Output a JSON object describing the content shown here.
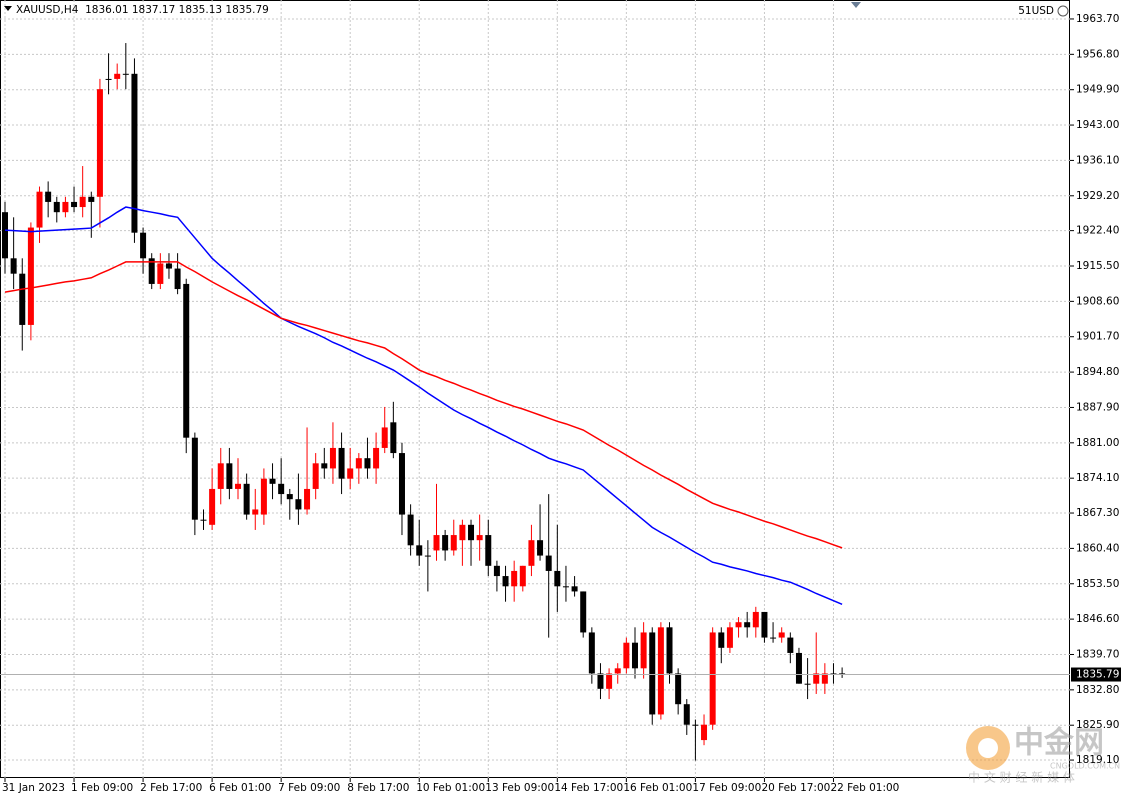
{
  "chart_data": {
    "type": "candlestick",
    "title": "XAUUSD,H4",
    "account_label": "51USD",
    "categories": [
      "31 Jan 2023",
      null,
      null,
      null,
      null,
      null,
      null,
      null,
      "1 Feb 09:00",
      null,
      null,
      null,
      null,
      null,
      null,
      null,
      "2 Feb 17:00",
      null,
      null,
      null,
      null,
      null,
      null,
      null,
      "6 Feb 01:00",
      null,
      null,
      null,
      null,
      null,
      null,
      null,
      "7 Feb 09:00",
      null,
      null,
      null,
      null,
      null,
      null,
      null,
      "8 Feb 17:00",
      null,
      null,
      null,
      null,
      null,
      null,
      null,
      "10 Feb 01:00",
      null,
      null,
      null,
      null,
      null,
      null,
      null,
      "13 Feb 09:00",
      null,
      null,
      null,
      null,
      null,
      null,
      null,
      "14 Feb 17:00",
      null,
      null,
      null,
      null,
      null,
      null,
      null,
      "16 Feb 01:00",
      null,
      null,
      null,
      null,
      null,
      null,
      null,
      "17 Feb 09:00",
      null,
      null,
      null,
      null,
      null,
      null,
      null,
      "20 Feb 17:00",
      null,
      null,
      null,
      null,
      null,
      null,
      null,
      "22 Feb 01:00",
      null
    ],
    "open": [
      1926,
      1917,
      1914,
      1904,
      1923,
      1930,
      1928,
      1926,
      1928,
      1927,
      1929,
      1929,
      1952,
      1952,
      1953,
      1953,
      1922,
      1917,
      1912,
      1916,
      1915,
      1912,
      1882,
      1866,
      1865,
      1872,
      1877,
      1872,
      1873,
      1867,
      1867,
      1874,
      1873,
      1871,
      1870,
      1868,
      1872,
      1877,
      1876,
      1880,
      1874,
      1876,
      1878,
      1876,
      1880,
      1885,
      1879,
      1867,
      1861,
      1859,
      1860,
      1863,
      1860,
      1862,
      1865,
      1862,
      1863,
      1857,
      1855,
      1853,
      1853,
      1857,
      1862,
      1859,
      1856,
      1853,
      1853,
      1852,
      1844,
      1836,
      1833,
      1836,
      1837,
      1842,
      1837,
      1844,
      1828,
      1845,
      1836,
      1830,
      1826,
      1823,
      1826,
      1844,
      1841,
      1845,
      1846,
      1845,
      1848,
      1843,
      1843,
      1843,
      1840,
      1834,
      1834,
      1834,
      1836,
      1836.01
    ],
    "high": [
      1928,
      1925,
      1917,
      1924,
      1931,
      1932,
      1929,
      1929,
      1931,
      1935,
      1930,
      1952,
      1957,
      1955,
      1959,
      1956,
      1923,
      1918,
      1918,
      1918,
      1918,
      1913,
      1883,
      1868,
      1876,
      1880,
      1880,
      1878,
      1875,
      1872,
      1876,
      1877,
      1878,
      1872,
      1875,
      1884,
      1879,
      1880,
      1885,
      1883,
      1880,
      1879,
      1882,
      1883,
      1888,
      1889,
      1881,
      1869,
      1866,
      1862,
      1873,
      1864,
      1866,
      1866,
      1866,
      1867,
      1866,
      1858,
      1857,
      1858,
      1857,
      1865,
      1869,
      1871,
      1865,
      1857,
      1855,
      1852,
      1845,
      1838,
      1837,
      1838,
      1843,
      1845,
      1846,
      1845,
      1846,
      1846,
      1837,
      1831,
      1827,
      1828,
      1845,
      1845,
      1846,
      1847,
      1848,
      1849,
      1848,
      1846,
      1845,
      1844,
      1841,
      1839,
      1844,
      1838,
      1838,
      1837.17
    ],
    "low": [
      1914,
      1911,
      1899,
      1901,
      1920,
      1925,
      1924,
      1925,
      1926,
      1925,
      1921,
      1923,
      1949,
      1950,
      1950,
      1920,
      1914,
      1911,
      1911,
      1913,
      1910,
      1879,
      1863,
      1864,
      1864,
      1869,
      1870,
      1870,
      1866,
      1864,
      1865,
      1870,
      1869,
      1866,
      1865,
      1867,
      1870,
      1874,
      1873,
      1871,
      1872,
      1873,
      1874,
      1873,
      1879,
      1878,
      1863,
      1859,
      1857,
      1852,
      1858,
      1858,
      1859,
      1857,
      1857,
      1858,
      1855,
      1852,
      1850,
      1850,
      1852,
      1855,
      1858,
      1843,
      1848,
      1850,
      1851,
      1843,
      1834,
      1831,
      1831,
      1834,
      1836,
      1835,
      1835,
      1826,
      1827,
      1834,
      1828,
      1824,
      1819,
      1822,
      1825,
      1838,
      1840,
      1843,
      1843,
      1843,
      1842,
      1842,
      1842,
      1838,
      1834,
      1831,
      1832,
      1832,
      1834,
      1835.13
    ],
    "close": [
      1917,
      1914,
      1904,
      1923,
      1930,
      1928,
      1926,
      1928,
      1927,
      1929,
      1928,
      1950,
      1952,
      1953,
      1953,
      1922,
      1917,
      1912,
      1916,
      1915,
      1911,
      1882,
      1866,
      1866,
      1872,
      1877,
      1872,
      1873,
      1867,
      1868,
      1874,
      1873,
      1871,
      1870,
      1868,
      1872,
      1877,
      1876,
      1880,
      1874,
      1876,
      1878,
      1876,
      1880,
      1884,
      1879,
      1867,
      1861,
      1859,
      1859,
      1863,
      1860,
      1863,
      1865,
      1862,
      1863,
      1857,
      1855,
      1853,
      1856,
      1857,
      1862,
      1859,
      1856,
      1853,
      1853,
      1852,
      1844,
      1836,
      1833,
      1836,
      1837,
      1842,
      1837,
      1844,
      1828,
      1845,
      1836,
      1830,
      1826,
      1826,
      1826,
      1844,
      1841,
      1845,
      1846,
      1845,
      1848,
      1843,
      1843,
      1844,
      1840,
      1834,
      1834,
      1836,
      1836,
      1836,
      1835.79
    ],
    "up_color": "#ff0000",
    "down_color": "#000000",
    "moving_averages": [
      {
        "color": "#0000ff",
        "values": [
          1922.5,
          1922.4,
          1922.3,
          1922.2,
          1922.3,
          1922.4,
          1922.5,
          1922.6,
          1922.7,
          1922.8,
          1922.9,
          1923.9,
          1924.9,
          1926.0,
          1927.0,
          1926.7,
          1926.3,
          1926.0,
          1925.7,
          1925.3,
          1925.0,
          1923.0,
          1921.0,
          1919.0,
          1917.0,
          1915.5,
          1914.1,
          1912.6,
          1911.2,
          1909.7,
          1908.2,
          1906.8,
          1905.3,
          1904.5,
          1903.7,
          1903.0,
          1902.3,
          1901.5,
          1900.6,
          1899.9,
          1899.1,
          1898.3,
          1897.5,
          1896.8,
          1896.0,
          1895.2,
          1894.1,
          1893.0,
          1891.9,
          1890.7,
          1889.6,
          1888.5,
          1887.4,
          1886.5,
          1885.7,
          1884.8,
          1884.0,
          1883.1,
          1882.3,
          1881.4,
          1880.6,
          1879.7,
          1878.9,
          1878.0,
          1877.4,
          1876.9,
          1876.3,
          1875.7,
          1874.3,
          1872.9,
          1871.5,
          1870.1,
          1868.7,
          1867.3,
          1865.9,
          1864.5,
          1863.5,
          1862.6,
          1861.6,
          1860.6,
          1859.6,
          1858.7,
          1857.7,
          1857.3,
          1856.8,
          1856.4,
          1856.0,
          1855.5,
          1855.1,
          1854.7,
          1854.2,
          1853.8,
          1853.1,
          1852.4,
          1851.6,
          1850.9,
          1850.2,
          1849.5
        ]
      },
      {
        "color": "#ff0000",
        "values": [
          1910.4,
          1910.7,
          1911.0,
          1911.2,
          1911.5,
          1911.8,
          1912.1,
          1912.4,
          1912.6,
          1912.9,
          1913.2,
          1914.0,
          1914.7,
          1915.5,
          1916.3,
          1916.3,
          1916.3,
          1916.3,
          1916.3,
          1916.3,
          1916.3,
          1915.3,
          1914.4,
          1913.4,
          1912.4,
          1911.5,
          1910.6,
          1909.7,
          1908.9,
          1908.0,
          1907.1,
          1906.2,
          1905.3,
          1904.8,
          1904.3,
          1903.9,
          1903.4,
          1902.9,
          1902.4,
          1901.9,
          1901.4,
          1900.9,
          1900.5,
          1900.0,
          1899.5,
          1898.4,
          1897.4,
          1896.3,
          1895.2,
          1894.5,
          1893.9,
          1893.2,
          1892.6,
          1891.9,
          1891.3,
          1890.6,
          1890.0,
          1889.3,
          1888.7,
          1888.1,
          1887.6,
          1887.0,
          1886.4,
          1885.8,
          1885.2,
          1884.7,
          1884.1,
          1883.5,
          1882.5,
          1881.5,
          1880.5,
          1879.6,
          1878.6,
          1877.6,
          1876.6,
          1875.7,
          1874.7,
          1873.8,
          1872.9,
          1871.9,
          1871.0,
          1870.1,
          1869.2,
          1868.6,
          1868.0,
          1867.5,
          1866.9,
          1866.3,
          1865.7,
          1865.2,
          1864.6,
          1864.0,
          1863.4,
          1862.8,
          1862.3,
          1861.7,
          1861.1,
          1860.5
        ]
      }
    ],
    "ylim": [
      1815.6,
      1967.4
    ],
    "yticks": [
      {
        "value": 1963.7,
        "label": "1963.70"
      },
      {
        "value": 1956.8,
        "label": "1956.80"
      },
      {
        "value": 1949.9,
        "label": "1949.90"
      },
      {
        "value": 1943.0,
        "label": "1943.00"
      },
      {
        "value": 1936.1,
        "label": "1936.10"
      },
      {
        "value": 1929.2,
        "label": "1929.20"
      },
      {
        "value": 1922.4,
        "label": "1922.40"
      },
      {
        "value": 1915.5,
        "label": "1915.50"
      },
      {
        "value": 1908.6,
        "label": "1908.60"
      },
      {
        "value": 1901.7,
        "label": "1901.70"
      },
      {
        "value": 1894.8,
        "label": "1894.80"
      },
      {
        "value": 1887.9,
        "label": "1887.90"
      },
      {
        "value": 1881.0,
        "label": "1881.00"
      },
      {
        "value": 1874.1,
        "label": "1874.10"
      },
      {
        "value": 1867.3,
        "label": "1867.30"
      },
      {
        "value": 1860.4,
        "label": "1860.40"
      },
      {
        "value": 1853.5,
        "label": "1853.50"
      },
      {
        "value": 1846.6,
        "label": "1846.60"
      },
      {
        "value": 1839.7,
        "label": "1839.70"
      },
      {
        "value": 1832.8,
        "label": "1832.80"
      },
      {
        "value": 1825.9,
        "label": "1825.90"
      },
      {
        "value": 1819.1,
        "label": "1819.10"
      }
    ],
    "grid": true,
    "watermark": {
      "name": "中金网",
      "site": "CNGOLD.COM.CN",
      "slogan": "中 文 财 经 新 媒 体"
    }
  }
}
